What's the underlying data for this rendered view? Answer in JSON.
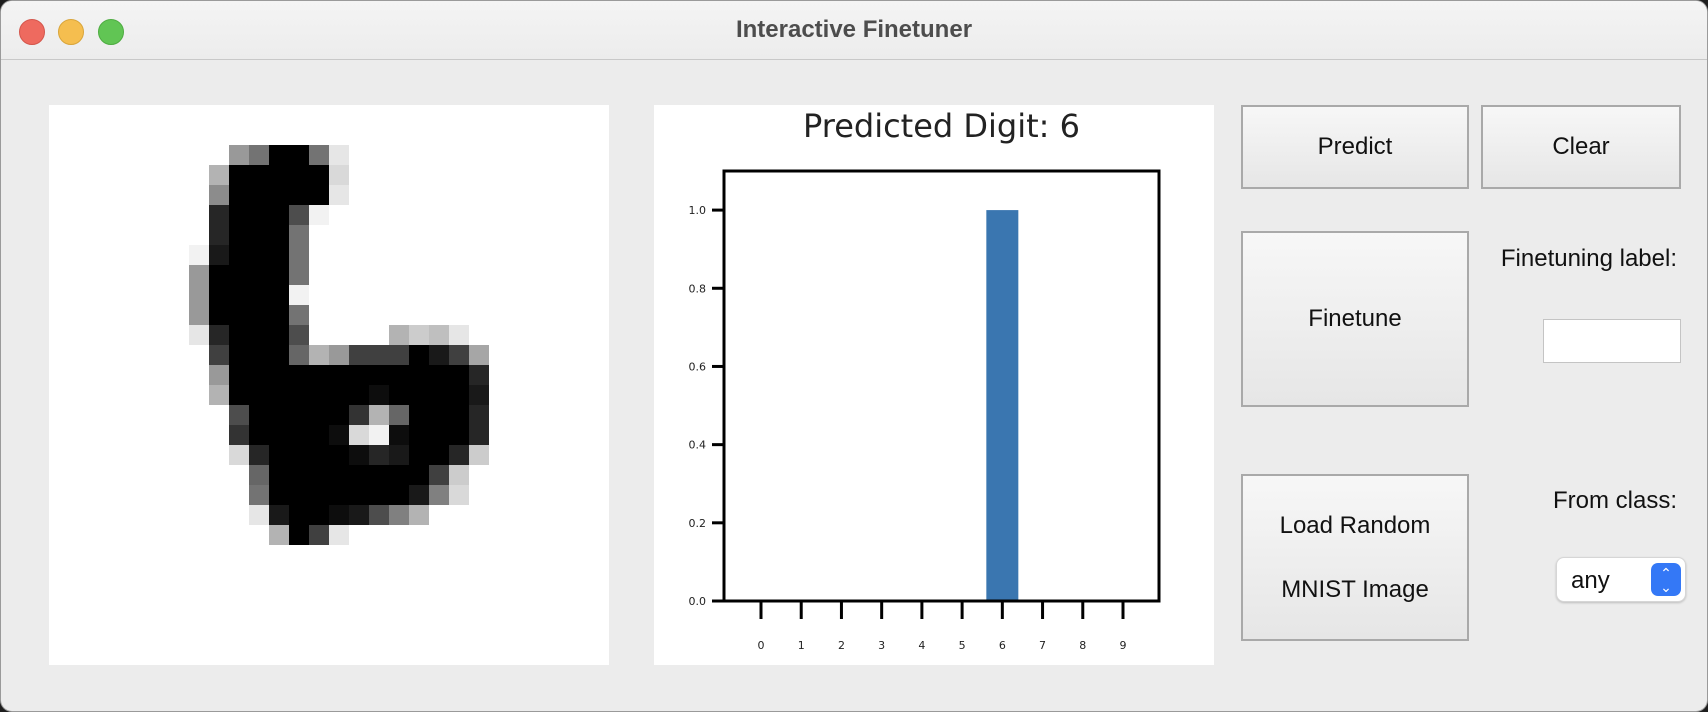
{
  "window": {
    "title": "Interactive Finetuner",
    "buttons": [
      "close",
      "minimize",
      "maximize"
    ]
  },
  "drawing_canvas": {
    "icon": "handwritten-digit-pixel-grid"
  },
  "chart_data": {
    "type": "bar",
    "title": "Predicted Digit: 6",
    "categories": [
      "0",
      "1",
      "2",
      "3",
      "4",
      "5",
      "6",
      "7",
      "8",
      "9"
    ],
    "values": [
      0,
      0,
      0,
      0,
      0,
      0,
      1.0,
      0,
      0,
      0
    ],
    "yticks": [
      "0.0",
      "0.2",
      "0.4",
      "0.6",
      "0.8",
      "1.0"
    ],
    "ylim": [
      0,
      1.1
    ],
    "xlabel": "",
    "ylabel": "",
    "bar_color": "#3a76b0",
    "grid": false
  },
  "controls": {
    "predict_label": "Predict",
    "clear_label": "Clear",
    "finetune_label": "Finetune",
    "finetuning_label_text": "Finetuning label:",
    "finetuning_label_value": "",
    "load_label_line1": "Load Random",
    "load_label_line2": "MNIST Image",
    "from_class_text": "From class:",
    "from_class_value": "any"
  },
  "colors": {
    "accent": "#3478f6",
    "window_bg": "#ececec"
  }
}
